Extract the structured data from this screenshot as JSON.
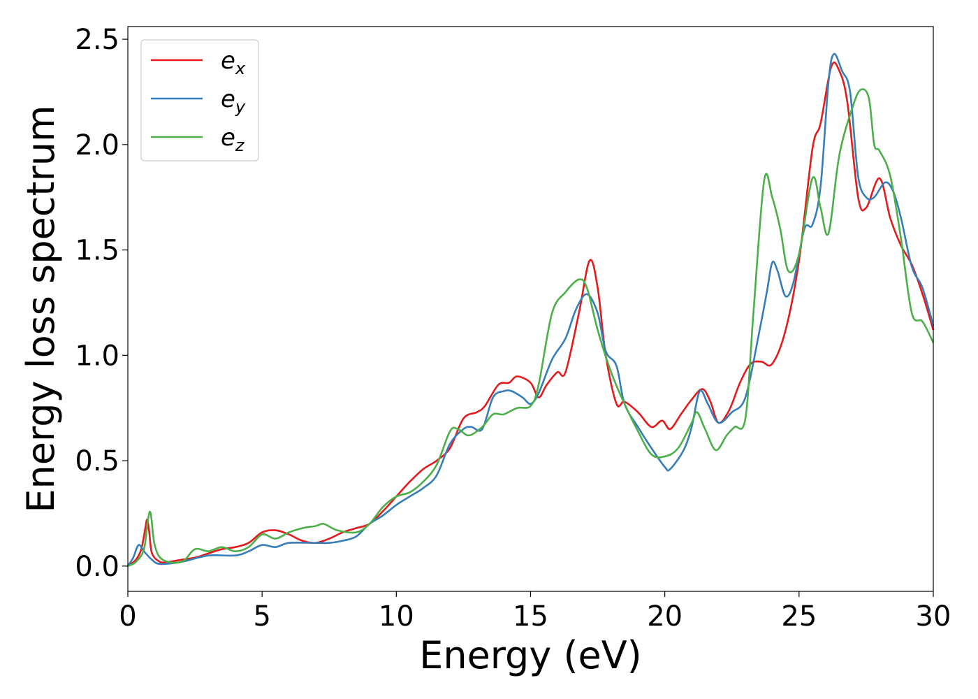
{
  "chart_data": {
    "type": "line",
    "title": "",
    "xlabel": "Energy (eV)",
    "ylabel": "Energy loss spectrum",
    "xlim": [
      0,
      30
    ],
    "ylim": [
      -0.12,
      2.56
    ],
    "xticks": [
      0,
      5,
      10,
      15,
      20,
      25,
      30
    ],
    "xtick_labels": [
      "0",
      "5",
      "10",
      "15",
      "20",
      "25",
      "30"
    ],
    "yticks": [
      0.0,
      0.5,
      1.0,
      1.5,
      2.0,
      2.5
    ],
    "ytick_labels": [
      "0.0",
      "0.5",
      "1.0",
      "1.5",
      "2.0",
      "2.5"
    ],
    "grid": false,
    "legend_position": "top-left",
    "series": [
      {
        "name": "e_x",
        "legend_base": "e",
        "legend_sub": "x",
        "color": "#e41a1c",
        "points": [
          [
            0,
            0
          ],
          [
            0.3,
            0.03
          ],
          [
            0.5,
            0.08
          ],
          [
            0.65,
            0.18
          ],
          [
            0.72,
            0.22
          ],
          [
            0.8,
            0.16
          ],
          [
            0.9,
            0.06
          ],
          [
            1.2,
            0.02
          ],
          [
            1.5,
            0.02
          ],
          [
            2,
            0.03
          ],
          [
            2.5,
            0.04
          ],
          [
            3,
            0.06
          ],
          [
            3.5,
            0.08
          ],
          [
            4,
            0.09
          ],
          [
            4.5,
            0.11
          ],
          [
            5,
            0.16
          ],
          [
            5.5,
            0.17
          ],
          [
            6,
            0.15
          ],
          [
            6.5,
            0.12
          ],
          [
            7,
            0.11
          ],
          [
            7.5,
            0.13
          ],
          [
            8,
            0.16
          ],
          [
            8.5,
            0.18
          ],
          [
            9,
            0.2
          ],
          [
            9.5,
            0.26
          ],
          [
            10,
            0.33
          ],
          [
            10.5,
            0.4
          ],
          [
            11,
            0.46
          ],
          [
            11.5,
            0.5
          ],
          [
            12,
            0.56
          ],
          [
            12.5,
            0.7
          ],
          [
            13,
            0.73
          ],
          [
            13.3,
            0.76
          ],
          [
            13.8,
            0.86
          ],
          [
            14.2,
            0.87
          ],
          [
            14.5,
            0.9
          ],
          [
            15,
            0.87
          ],
          [
            15.3,
            0.8
          ],
          [
            15.6,
            0.86
          ],
          [
            16,
            0.92
          ],
          [
            16.3,
            0.92
          ],
          [
            16.8,
            1.2
          ],
          [
            17.2,
            1.45
          ],
          [
            17.5,
            1.32
          ],
          [
            17.8,
            1.0
          ],
          [
            18.2,
            0.77
          ],
          [
            18.5,
            0.78
          ],
          [
            19,
            0.73
          ],
          [
            19.5,
            0.66
          ],
          [
            19.9,
            0.69
          ],
          [
            20.2,
            0.65
          ],
          [
            20.6,
            0.72
          ],
          [
            21,
            0.79
          ],
          [
            21.4,
            0.84
          ],
          [
            21.7,
            0.78
          ],
          [
            22,
            0.68
          ],
          [
            22.4,
            0.74
          ],
          [
            22.8,
            0.87
          ],
          [
            23.2,
            0.96
          ],
          [
            23.6,
            0.97
          ],
          [
            24,
            0.96
          ],
          [
            24.5,
            1.12
          ],
          [
            25,
            1.45
          ],
          [
            25.5,
            1.98
          ],
          [
            25.8,
            2.1
          ],
          [
            26.2,
            2.37
          ],
          [
            26.5,
            2.35
          ],
          [
            26.8,
            2.2
          ],
          [
            27.2,
            1.75
          ],
          [
            27.5,
            1.7
          ],
          [
            28,
            1.84
          ],
          [
            28.4,
            1.65
          ],
          [
            28.8,
            1.52
          ],
          [
            29.2,
            1.43
          ],
          [
            29.6,
            1.29
          ],
          [
            30,
            1.12
          ]
        ]
      },
      {
        "name": "e_y",
        "legend_base": "e",
        "legend_sub": "y",
        "color": "#377eb8",
        "points": [
          [
            0,
            0
          ],
          [
            0.2,
            0.04
          ],
          [
            0.4,
            0.1
          ],
          [
            0.6,
            0.07
          ],
          [
            0.9,
            0.03
          ],
          [
            1.2,
            0.01
          ],
          [
            2,
            0.02
          ],
          [
            3,
            0.05
          ],
          [
            4,
            0.05
          ],
          [
            4.5,
            0.07
          ],
          [
            5,
            0.1
          ],
          [
            5.5,
            0.09
          ],
          [
            6,
            0.11
          ],
          [
            7,
            0.11
          ],
          [
            7.5,
            0.11
          ],
          [
            8,
            0.12
          ],
          [
            8.5,
            0.14
          ],
          [
            9,
            0.2
          ],
          [
            9.5,
            0.24
          ],
          [
            10,
            0.29
          ],
          [
            10.5,
            0.33
          ],
          [
            11,
            0.37
          ],
          [
            11.5,
            0.43
          ],
          [
            12,
            0.58
          ],
          [
            12.5,
            0.65
          ],
          [
            12.8,
            0.66
          ],
          [
            13.2,
            0.65
          ],
          [
            13.6,
            0.8
          ],
          [
            14,
            0.83
          ],
          [
            14.3,
            0.83
          ],
          [
            14.7,
            0.8
          ],
          [
            15,
            0.77
          ],
          [
            15.3,
            0.82
          ],
          [
            15.8,
            0.98
          ],
          [
            16.3,
            1.08
          ],
          [
            16.7,
            1.22
          ],
          [
            17.1,
            1.29
          ],
          [
            17.5,
            1.2
          ],
          [
            17.8,
            1.02
          ],
          [
            18.2,
            0.95
          ],
          [
            18.5,
            0.77
          ],
          [
            19,
            0.66
          ],
          [
            19.5,
            0.56
          ],
          [
            20,
            0.47
          ],
          [
            20.2,
            0.46
          ],
          [
            20.7,
            0.55
          ],
          [
            21,
            0.66
          ],
          [
            21.3,
            0.83
          ],
          [
            21.6,
            0.77
          ],
          [
            22,
            0.68
          ],
          [
            22.5,
            0.73
          ],
          [
            23,
            0.8
          ],
          [
            23.5,
            1.1
          ],
          [
            23.8,
            1.3
          ],
          [
            24,
            1.44
          ],
          [
            24.2,
            1.4
          ],
          [
            24.5,
            1.28
          ],
          [
            24.8,
            1.35
          ],
          [
            25.2,
            1.6
          ],
          [
            25.5,
            1.62
          ],
          [
            25.8,
            1.8
          ],
          [
            26.1,
            2.3
          ],
          [
            26.3,
            2.43
          ],
          [
            26.6,
            2.35
          ],
          [
            26.9,
            2.25
          ],
          [
            27.2,
            1.85
          ],
          [
            27.5,
            1.75
          ],
          [
            27.8,
            1.75
          ],
          [
            28.2,
            1.82
          ],
          [
            28.5,
            1.78
          ],
          [
            28.8,
            1.65
          ],
          [
            29.2,
            1.42
          ],
          [
            29.6,
            1.32
          ],
          [
            30,
            1.14
          ]
        ]
      },
      {
        "name": "e_z",
        "legend_base": "e",
        "legend_sub": "z",
        "color": "#4daf4a",
        "points": [
          [
            0,
            0
          ],
          [
            0.3,
            0.02
          ],
          [
            0.6,
            0.08
          ],
          [
            0.75,
            0.22
          ],
          [
            0.85,
            0.25
          ],
          [
            1,
            0.1
          ],
          [
            1.3,
            0.03
          ],
          [
            2,
            0.02
          ],
          [
            2.5,
            0.08
          ],
          [
            3,
            0.07
          ],
          [
            3.5,
            0.09
          ],
          [
            4,
            0.07
          ],
          [
            4.5,
            0.09
          ],
          [
            5,
            0.15
          ],
          [
            5.5,
            0.13
          ],
          [
            6,
            0.16
          ],
          [
            6.5,
            0.18
          ],
          [
            7,
            0.19
          ],
          [
            7.3,
            0.2
          ],
          [
            7.8,
            0.17
          ],
          [
            8.5,
            0.16
          ],
          [
            9,
            0.2
          ],
          [
            9.5,
            0.28
          ],
          [
            10,
            0.33
          ],
          [
            10.5,
            0.35
          ],
          [
            11,
            0.4
          ],
          [
            11.5,
            0.48
          ],
          [
            12,
            0.64
          ],
          [
            12.3,
            0.65
          ],
          [
            12.7,
            0.62
          ],
          [
            13.2,
            0.66
          ],
          [
            13.6,
            0.72
          ],
          [
            14,
            0.72
          ],
          [
            14.5,
            0.75
          ],
          [
            15,
            0.76
          ],
          [
            15.3,
            0.86
          ],
          [
            15.8,
            1.2
          ],
          [
            16.3,
            1.3
          ],
          [
            16.8,
            1.36
          ],
          [
            17.1,
            1.32
          ],
          [
            17.5,
            1.12
          ],
          [
            18,
            0.92
          ],
          [
            18.5,
            0.77
          ],
          [
            19,
            0.64
          ],
          [
            19.5,
            0.53
          ],
          [
            20,
            0.52
          ],
          [
            20.5,
            0.56
          ],
          [
            21,
            0.68
          ],
          [
            21.2,
            0.73
          ],
          [
            21.5,
            0.65
          ],
          [
            21.9,
            0.55
          ],
          [
            22.3,
            0.62
          ],
          [
            22.6,
            0.66
          ],
          [
            23,
            0.7
          ],
          [
            23.3,
            1.2
          ],
          [
            23.7,
            1.83
          ],
          [
            24,
            1.75
          ],
          [
            24.3,
            1.6
          ],
          [
            24.6,
            1.4
          ],
          [
            25,
            1.48
          ],
          [
            25.5,
            1.84
          ],
          [
            25.8,
            1.7
          ],
          [
            26.1,
            1.58
          ],
          [
            26.5,
            1.95
          ],
          [
            27,
            2.18
          ],
          [
            27.3,
            2.26
          ],
          [
            27.6,
            2.22
          ],
          [
            27.8,
            2.0
          ],
          [
            28,
            1.97
          ],
          [
            28.4,
            1.85
          ],
          [
            28.8,
            1.55
          ],
          [
            29.2,
            1.2
          ],
          [
            29.6,
            1.16
          ],
          [
            30,
            1.06
          ]
        ]
      }
    ]
  }
}
